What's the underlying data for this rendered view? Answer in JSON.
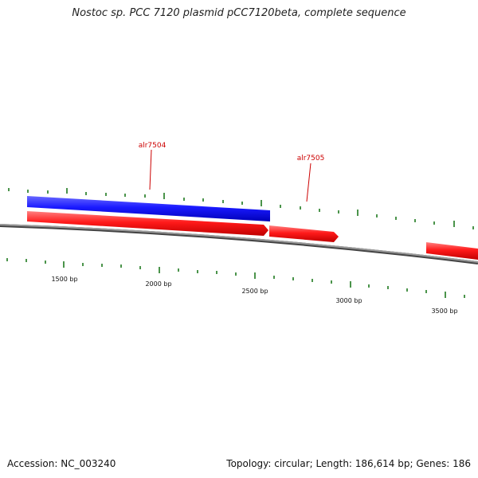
{
  "title": "Nostoc sp. PCC 7120 plasmid pCC7120beta, complete sequence",
  "colors": {
    "forward_gene": "#1a1aff",
    "reverse_gene": "#ff2020",
    "backbone": "#7a7a7a",
    "tick": "#1e7a1e",
    "gene_label": "#cc0000"
  },
  "scale_labels": [
    "1500 bp",
    "2000 bp",
    "2500 bp",
    "3000 bp",
    "3500 bp"
  ],
  "gene_labels": [
    "alr7504",
    "alr7505"
  ],
  "footer": {
    "accession": "Accession: NC_003240",
    "summary": "Topology: circular; Length: 186,614 bp; Genes: 186"
  }
}
